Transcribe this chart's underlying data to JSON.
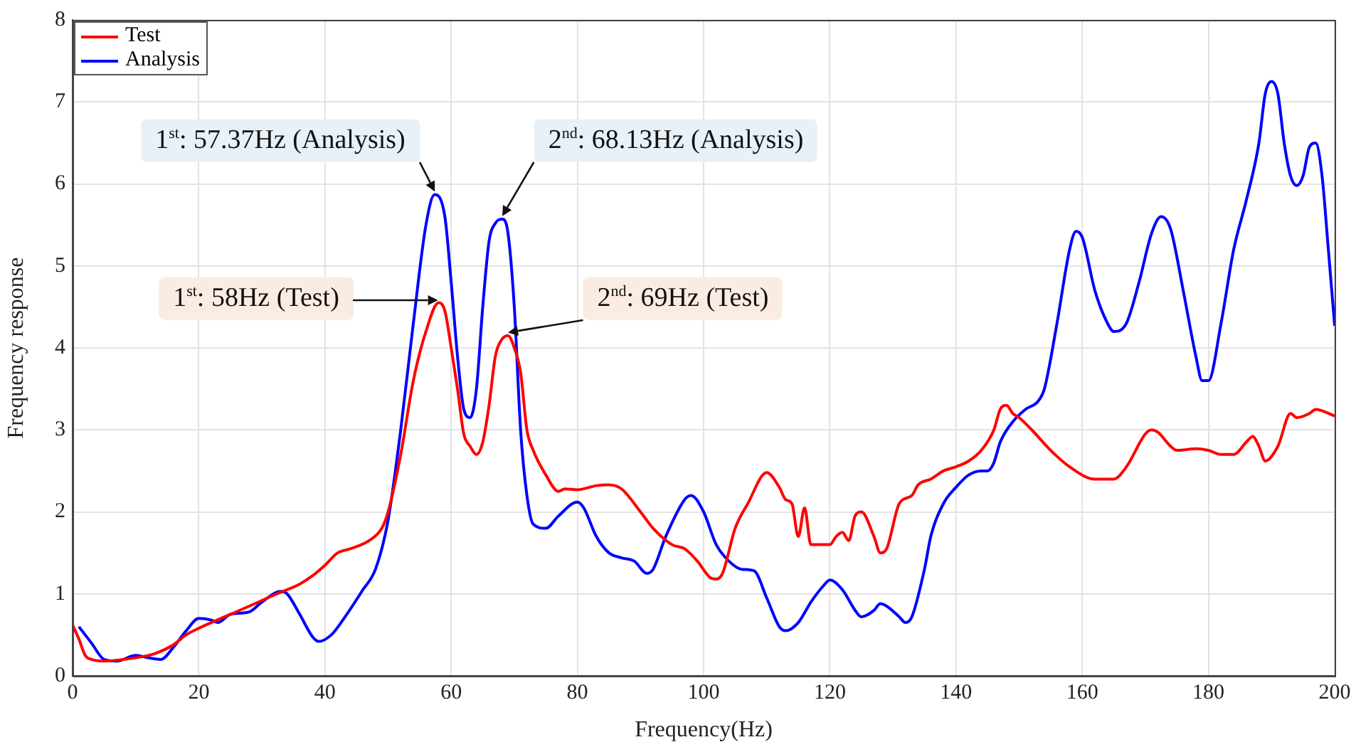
{
  "chart_data": {
    "type": "line",
    "xlabel": "Frequency(Hz)",
    "ylabel": "Frequency response",
    "xlim": [
      0,
      200
    ],
    "xticks": [
      0,
      20,
      40,
      60,
      80,
      100,
      120,
      140,
      160,
      180,
      200
    ],
    "ylim": [
      0,
      8
    ],
    "yticks": [
      0,
      1,
      2,
      3,
      4,
      5,
      6,
      7,
      8
    ],
    "grid": true,
    "legend": "top left",
    "marker": "none",
    "line_style": "solid",
    "series": [
      {
        "name": "Test",
        "color": "#ff0000",
        "x": [
          0,
          1,
          2,
          3,
          5,
          8,
          10,
          13,
          16,
          18,
          20,
          22,
          25,
          28,
          30,
          33,
          36,
          38,
          40,
          42,
          44,
          47,
          49,
          50,
          52,
          54,
          56,
          58,
          59,
          60,
          61,
          62,
          63,
          64,
          65,
          66,
          67,
          68,
          69,
          70,
          71,
          72,
          73,
          75,
          77,
          78,
          80,
          83,
          85,
          87,
          90,
          92,
          95,
          97,
          99,
          101,
          102,
          103,
          105,
          107,
          110,
          112,
          113,
          114,
          115,
          116,
          117,
          118,
          120,
          121,
          122,
          123,
          124,
          125,
          127,
          128,
          129,
          131,
          133,
          134,
          136,
          138,
          140,
          142,
          144,
          146,
          147,
          148,
          149,
          150,
          152,
          155,
          158,
          162,
          165,
          167,
          170,
          171,
          172,
          174,
          175,
          178,
          180,
          182,
          184,
          186,
          187,
          188,
          189,
          191,
          193,
          194,
          196,
          197,
          200
        ],
        "values": [
          0.62,
          0.45,
          0.25,
          0.2,
          0.18,
          0.2,
          0.22,
          0.27,
          0.38,
          0.5,
          0.58,
          0.65,
          0.75,
          0.85,
          0.92,
          1.02,
          1.12,
          1.22,
          1.35,
          1.5,
          1.55,
          1.65,
          1.8,
          2.0,
          2.7,
          3.6,
          4.2,
          4.55,
          4.45,
          4.0,
          3.5,
          2.95,
          2.8,
          2.7,
          2.85,
          3.3,
          3.9,
          4.1,
          4.15,
          4.0,
          3.7,
          3.0,
          2.75,
          2.45,
          2.25,
          2.28,
          2.27,
          2.32,
          2.33,
          2.28,
          2.0,
          1.8,
          1.6,
          1.55,
          1.4,
          1.2,
          1.18,
          1.25,
          1.8,
          2.1,
          2.48,
          2.3,
          2.15,
          2.1,
          1.7,
          2.05,
          1.6,
          1.6,
          1.6,
          1.7,
          1.75,
          1.65,
          1.95,
          2.0,
          1.7,
          1.5,
          1.55,
          2.1,
          2.2,
          2.33,
          2.4,
          2.5,
          2.55,
          2.62,
          2.75,
          3.0,
          3.25,
          3.3,
          3.2,
          3.15,
          3.0,
          2.75,
          2.55,
          2.4,
          2.4,
          2.55,
          2.95,
          3.0,
          2.97,
          2.8,
          2.75,
          2.77,
          2.75,
          2.7,
          2.7,
          2.85,
          2.92,
          2.8,
          2.62,
          2.8,
          3.2,
          3.15,
          3.2,
          3.25,
          3.17
        ]
      },
      {
        "name": "Analysis",
        "color": "#0000ff",
        "x": [
          1,
          3,
          5,
          7,
          10,
          12,
          14,
          16,
          18,
          20,
          22,
          23,
          25,
          28,
          30,
          33,
          34,
          36,
          38,
          39,
          41,
          43,
          46,
          48,
          50,
          52,
          54,
          56,
          57.37,
          59,
          60,
          61,
          62,
          63,
          64,
          65,
          66,
          67,
          68.13,
          69,
          70,
          71,
          72,
          73,
          75,
          77,
          80,
          81,
          83,
          85,
          87,
          89,
          91,
          92,
          94,
          97,
          98,
          100,
          102,
          104,
          106,
          108,
          110,
          112,
          113,
          115,
          117,
          119,
          120,
          122,
          124,
          125,
          127,
          128,
          129,
          131,
          132,
          133,
          135,
          136,
          138,
          140,
          142,
          144,
          145,
          146,
          147,
          149,
          151,
          153,
          154,
          156,
          158,
          159,
          160,
          162,
          164,
          165,
          167,
          169,
          171,
          172.5,
          174,
          176,
          178,
          179,
          180,
          182,
          184,
          186,
          188,
          189,
          190,
          191,
          192,
          193,
          194,
          195,
          196,
          197,
          198,
          199,
          200
        ],
        "values": [
          0.6,
          0.4,
          0.2,
          0.18,
          0.25,
          0.22,
          0.2,
          0.35,
          0.55,
          0.7,
          0.68,
          0.65,
          0.75,
          0.78,
          0.9,
          1.03,
          1.0,
          0.75,
          0.48,
          0.42,
          0.5,
          0.7,
          1.05,
          1.3,
          1.9,
          3.0,
          4.3,
          5.5,
          5.87,
          5.6,
          4.8,
          3.9,
          3.25,
          3.15,
          3.5,
          4.5,
          5.3,
          5.52,
          5.57,
          5.4,
          4.5,
          3.0,
          2.2,
          1.85,
          1.8,
          1.95,
          2.12,
          2.05,
          1.7,
          1.5,
          1.44,
          1.4,
          1.25,
          1.3,
          1.7,
          2.15,
          2.2,
          2.0,
          1.6,
          1.4,
          1.3,
          1.28,
          0.95,
          0.6,
          0.55,
          0.65,
          0.9,
          1.1,
          1.17,
          1.05,
          0.8,
          0.72,
          0.8,
          0.88,
          0.85,
          0.72,
          0.65,
          0.72,
          1.3,
          1.7,
          2.1,
          2.3,
          2.45,
          2.5,
          2.5,
          2.6,
          2.85,
          3.1,
          3.25,
          3.35,
          3.5,
          4.3,
          5.2,
          5.42,
          5.35,
          4.7,
          4.3,
          4.2,
          4.3,
          4.8,
          5.4,
          5.6,
          5.45,
          4.7,
          3.9,
          3.6,
          3.6,
          4.3,
          5.2,
          5.8,
          6.5,
          7.1,
          7.25,
          7.1,
          6.5,
          6.1,
          5.98,
          6.1,
          6.45,
          6.5,
          6.1,
          5.2,
          4.27
        ]
      }
    ],
    "annotations": [
      {
        "text": "1$^{st}$: 57.37Hz (Analysis)",
        "x": 57.37,
        "y": 5.87
      },
      {
        "text": "2$^{nd}$: 68.13Hz (Analysis)",
        "x": 68.13,
        "y": 5.57
      },
      {
        "text": "1$^{st}$: 58Hz (Test)",
        "x": 58,
        "y": 4.55
      },
      {
        "text": "2$^{nd}$: 69Hz (Test)",
        "x": 69,
        "y": 4.15
      }
    ]
  }
}
